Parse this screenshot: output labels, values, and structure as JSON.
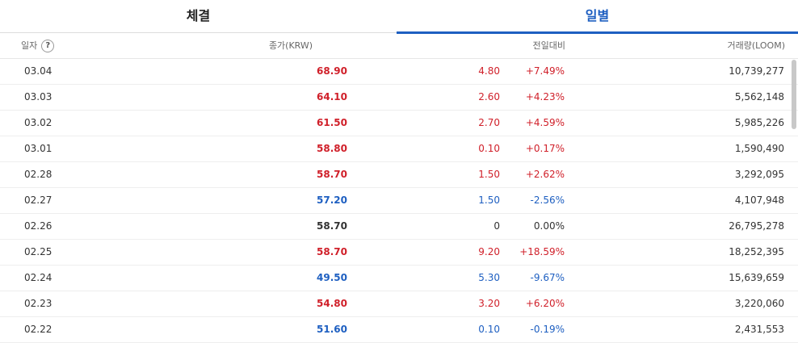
{
  "tabs": [
    {
      "label": "체결",
      "active": false
    },
    {
      "label": "일별",
      "active": true
    }
  ],
  "header": {
    "date": "일자",
    "close": "종가(KRW)",
    "change": "전일대비",
    "volume": "거래량(LOOM)"
  },
  "colors": {
    "up": "#d0202a",
    "down": "#1e5fc1",
    "active_tab": "#1e5fc1"
  },
  "rows": [
    {
      "date": "03.04",
      "close": "68.90",
      "change": "4.80",
      "pct": "+7.49%",
      "volume": "10,739,277",
      "dir": "up"
    },
    {
      "date": "03.03",
      "close": "64.10",
      "change": "2.60",
      "pct": "+4.23%",
      "volume": "5,562,148",
      "dir": "up"
    },
    {
      "date": "03.02",
      "close": "61.50",
      "change": "2.70",
      "pct": "+4.59%",
      "volume": "5,985,226",
      "dir": "up"
    },
    {
      "date": "03.01",
      "close": "58.80",
      "change": "0.10",
      "pct": "+0.17%",
      "volume": "1,590,490",
      "dir": "up"
    },
    {
      "date": "02.28",
      "close": "58.70",
      "change": "1.50",
      "pct": "+2.62%",
      "volume": "3,292,095",
      "dir": "up"
    },
    {
      "date": "02.27",
      "close": "57.20",
      "change": "1.50",
      "pct": "-2.56%",
      "volume": "4,107,948",
      "dir": "down"
    },
    {
      "date": "02.26",
      "close": "58.70",
      "change": "0",
      "pct": "0.00%",
      "volume": "26,795,278",
      "dir": "flat"
    },
    {
      "date": "02.25",
      "close": "58.70",
      "change": "9.20",
      "pct": "+18.59%",
      "volume": "18,252,395",
      "dir": "up"
    },
    {
      "date": "02.24",
      "close": "49.50",
      "change": "5.30",
      "pct": "-9.67%",
      "volume": "15,639,659",
      "dir": "down"
    },
    {
      "date": "02.23",
      "close": "54.80",
      "change": "3.20",
      "pct": "+6.20%",
      "volume": "3,220,060",
      "dir": "up"
    },
    {
      "date": "02.22",
      "close": "51.60",
      "change": "0.10",
      "pct": "-0.19%",
      "volume": "2,431,553",
      "dir": "down"
    }
  ]
}
